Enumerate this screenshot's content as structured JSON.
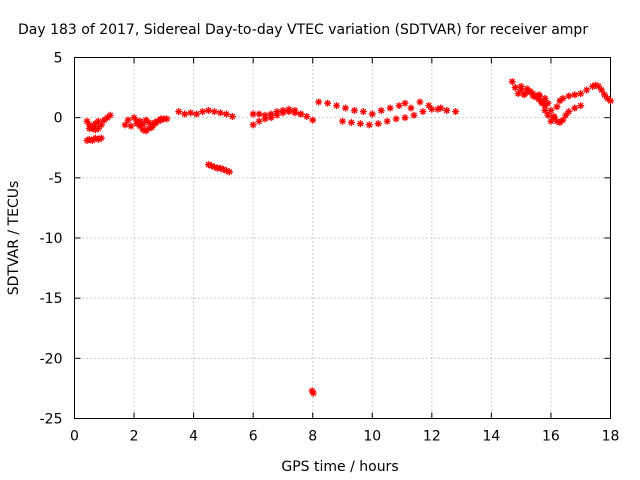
{
  "chart_data": {
    "type": "scatter",
    "title": "Day 183 of 2017, Sidereal Day-to-day VTEC variation (SDTVAR) for receiver ampr",
    "xlabel": "GPS time / hours",
    "ylabel": "SDTVAR / TECUs",
    "xlim": [
      0,
      18
    ],
    "ylim": [
      -25,
      5
    ],
    "xticks": [
      0,
      2,
      4,
      6,
      8,
      10,
      12,
      14,
      16,
      18
    ],
    "yticks": [
      5,
      0,
      -5,
      -10,
      -15,
      -20,
      -25
    ],
    "grid": true,
    "marker": "cross",
    "color": "#ff0000",
    "series": [
      {
        "name": "seg1",
        "x": [
          0.42,
          0.5,
          0.6,
          0.7,
          0.8,
          0.9
        ],
        "y": [
          -1.9,
          -1.8,
          -1.9,
          -1.7,
          -1.8,
          -1.7
        ]
      },
      {
        "name": "seg2",
        "x": [
          0.42,
          0.5,
          0.6,
          0.7,
          0.8,
          0.9,
          1.0,
          1.1,
          1.2
        ],
        "y": [
          -0.3,
          -0.6,
          -0.9,
          -0.5,
          -0.3,
          -0.6,
          -0.2,
          0.0,
          0.2
        ]
      },
      {
        "name": "seg3",
        "x": [
          0.5,
          0.6,
          0.7,
          0.8
        ],
        "y": [
          -0.9,
          -0.8,
          -1.0,
          -0.9
        ]
      },
      {
        "name": "seg4",
        "x": [
          1.7,
          1.8,
          1.9,
          2.0,
          2.1,
          2.2,
          2.3,
          2.4,
          2.5,
          2.6,
          2.7,
          2.8,
          2.9
        ],
        "y": [
          -0.6,
          -0.2,
          -0.7,
          0.0,
          -0.5,
          -0.3,
          -0.6,
          -0.2,
          -0.4,
          -0.8,
          -0.5,
          -0.3,
          -0.1
        ]
      },
      {
        "name": "seg5",
        "x": [
          2.1,
          2.2,
          2.3,
          2.4,
          2.5,
          2.6,
          2.7,
          2.8,
          2.9,
          3.0,
          3.1
        ],
        "y": [
          -0.3,
          -0.7,
          -1.0,
          -1.1,
          -0.9,
          -0.6,
          -0.4,
          -0.3,
          -0.2,
          -0.1,
          -0.1
        ]
      },
      {
        "name": "seg6",
        "x": [
          3.5,
          3.7,
          3.9,
          4.1,
          4.3,
          4.5,
          4.7,
          4.9,
          5.1,
          5.3
        ],
        "y": [
          0.5,
          0.3,
          0.4,
          0.3,
          0.5,
          0.6,
          0.5,
          0.4,
          0.3,
          0.1
        ]
      },
      {
        "name": "seg7",
        "x": [
          4.5,
          4.6,
          4.7,
          4.8,
          4.9,
          5.0,
          5.1,
          5.2
        ],
        "y": [
          -3.9,
          -4.0,
          -4.1,
          -4.2,
          -4.2,
          -4.3,
          -4.4,
          -4.5
        ]
      },
      {
        "name": "seg8",
        "x": [
          6.0,
          6.2,
          6.4,
          6.6,
          6.8,
          7.0,
          7.2,
          7.4,
          7.6,
          7.8,
          8.0
        ],
        "y": [
          0.3,
          0.3,
          0.2,
          0.3,
          0.5,
          0.6,
          0.7,
          0.6,
          0.3,
          0.1,
          -0.2
        ]
      },
      {
        "name": "seg9",
        "x": [
          6.0,
          6.2,
          6.4,
          6.6,
          6.8,
          7.0,
          7.2,
          7.4,
          7.6
        ],
        "y": [
          -0.6,
          -0.3,
          -0.1,
          0.0,
          0.2,
          0.4,
          0.5,
          0.4,
          0.3
        ]
      },
      {
        "name": "seg10",
        "x": [
          8.2,
          8.5,
          8.8,
          9.1,
          9.4,
          9.7,
          10.0,
          10.3,
          10.6,
          10.9,
          11.1,
          11.3,
          11.6,
          11.9,
          12.2,
          12.5,
          12.8
        ],
        "y": [
          1.3,
          1.2,
          1.0,
          0.8,
          0.6,
          0.5,
          0.3,
          0.6,
          0.8,
          1.0,
          1.2,
          0.8,
          1.3,
          1.0,
          0.7,
          0.6,
          0.5
        ]
      },
      {
        "name": "seg11",
        "x": [
          9.0,
          9.3,
          9.6,
          9.9,
          10.2,
          10.5,
          10.8,
          11.1,
          11.4,
          11.7,
          12.0,
          12.3
        ],
        "y": [
          -0.3,
          -0.4,
          -0.5,
          -0.6,
          -0.5,
          -0.3,
          -0.1,
          0.0,
          0.2,
          0.5,
          0.7,
          0.8
        ]
      },
      {
        "name": "seg12",
        "x": [
          14.7,
          14.8,
          14.9,
          15.0,
          15.1,
          15.2,
          15.3,
          15.4,
          15.5,
          15.6,
          15.7,
          15.8
        ],
        "y": [
          3.0,
          2.5,
          2.0,
          2.6,
          1.9,
          2.4,
          2.2,
          1.8,
          1.7,
          1.5,
          1.3,
          1.0
        ]
      },
      {
        "name": "seg13",
        "x": [
          15.0,
          15.2,
          15.4,
          15.6,
          15.8,
          15.9,
          16.0,
          16.1,
          16.2,
          16.3,
          16.4,
          16.5,
          16.6,
          16.8,
          17.0
        ],
        "y": [
          2.3,
          2.1,
          2.0,
          1.9,
          1.6,
          1.2,
          0.6,
          0.0,
          -0.3,
          -0.4,
          -0.2,
          0.2,
          0.5,
          0.8,
          1.0
        ]
      },
      {
        "name": "seg14",
        "x": [
          15.6,
          15.7,
          15.8,
          15.9,
          16.0,
          16.1,
          16.2,
          16.3,
          16.4,
          16.6,
          16.8,
          17.0,
          17.2,
          17.4,
          17.5,
          17.6,
          17.7,
          17.8,
          17.9,
          18.0
        ],
        "y": [
          1.8,
          1.2,
          0.6,
          0.2,
          -0.3,
          0.1,
          0.9,
          1.4,
          1.6,
          1.8,
          1.9,
          2.0,
          2.3,
          2.6,
          2.7,
          2.6,
          2.3,
          1.9,
          1.6,
          1.4
        ]
      },
      {
        "name": "seg15",
        "x": [
          7.98,
          8.02
        ],
        "y": [
          -22.7,
          -22.9
        ]
      }
    ]
  }
}
